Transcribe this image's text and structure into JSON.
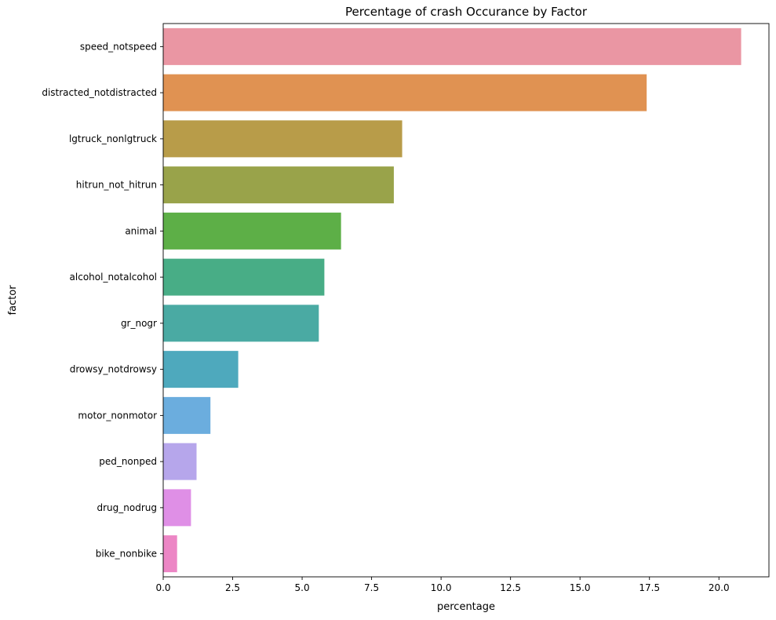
{
  "chart_data": {
    "type": "bar",
    "orientation": "horizontal",
    "title": "Percentage of crash Occurance by Factor",
    "xlabel": "percentage",
    "ylabel": "factor",
    "xlim": [
      0,
      21.8
    ],
    "x_ticks": [
      0.0,
      2.5,
      5.0,
      7.5,
      10.0,
      12.5,
      15.0,
      17.5,
      20.0
    ],
    "x_tick_labels": [
      "0.0",
      "2.5",
      "5.0",
      "7.5",
      "10.0",
      "12.5",
      "15.0",
      "17.5",
      "20.0"
    ],
    "grid": false,
    "legend": "none",
    "categories": [
      "speed_notspeed",
      "distracted_notdistracted",
      "lgtruck_nonlgtruck",
      "hitrun_not_hitrun",
      "animal",
      "alcohol_notalcohol",
      "gr_nogr",
      "drowsy_notdrowsy",
      "motor_nonmotor",
      "ped_nonped",
      "drug_nodrug",
      "bike_nonbike"
    ],
    "values": [
      20.8,
      17.4,
      8.6,
      8.3,
      6.4,
      5.8,
      5.6,
      2.7,
      1.7,
      1.2,
      1.0,
      0.5
    ],
    "colors": [
      "#ea96a3",
      "#e09252",
      "#b89c49",
      "#99a34a",
      "#5daf47",
      "#48ad86",
      "#4aaaa3",
      "#4ea9bd",
      "#6badde",
      "#b6a6eb",
      "#df8fe6",
      "#ec86c5"
    ]
  }
}
